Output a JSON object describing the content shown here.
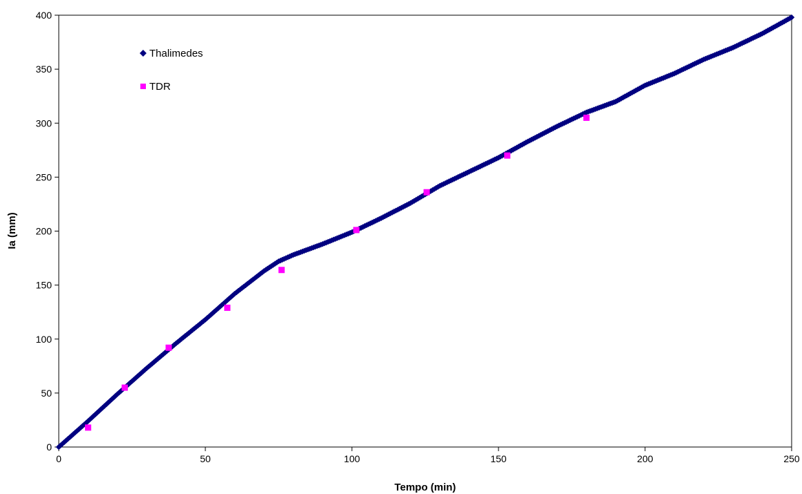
{
  "chart_data": {
    "type": "scatter",
    "title": "",
    "xlabel": "Tempo (min)",
    "ylabel": "Ia (mm)",
    "xlim": [
      0,
      250
    ],
    "ylim": [
      0,
      400
    ],
    "xticks": [
      0,
      50,
      100,
      150,
      200,
      250
    ],
    "yticks": [
      0,
      50,
      100,
      150,
      200,
      250,
      300,
      350,
      400
    ],
    "grid": false,
    "legend_position": "top-left",
    "series": [
      {
        "name": "Thalimedes",
        "marker": "diamond",
        "color": "#000080",
        "x": [
          0,
          10,
          20,
          30,
          40,
          50,
          60,
          70,
          75,
          80,
          90,
          100,
          110,
          120,
          130,
          140,
          150,
          160,
          170,
          180,
          190,
          200,
          210,
          220,
          230,
          240,
          250
        ],
        "y": [
          0,
          24,
          49,
          73,
          96,
          118,
          142,
          163,
          172,
          178,
          188,
          199,
          212,
          226,
          242,
          255,
          268,
          283,
          297,
          310,
          320,
          335,
          346,
          359,
          370,
          383,
          398
        ]
      },
      {
        "name": "TDR",
        "marker": "square",
        "color": "#ff00ff",
        "x": [
          10,
          22.5,
          37.5,
          57.5,
          76,
          101.5,
          125.5,
          153,
          180
        ],
        "y": [
          18,
          55,
          92,
          129,
          164,
          201,
          236,
          270,
          305
        ]
      }
    ]
  }
}
